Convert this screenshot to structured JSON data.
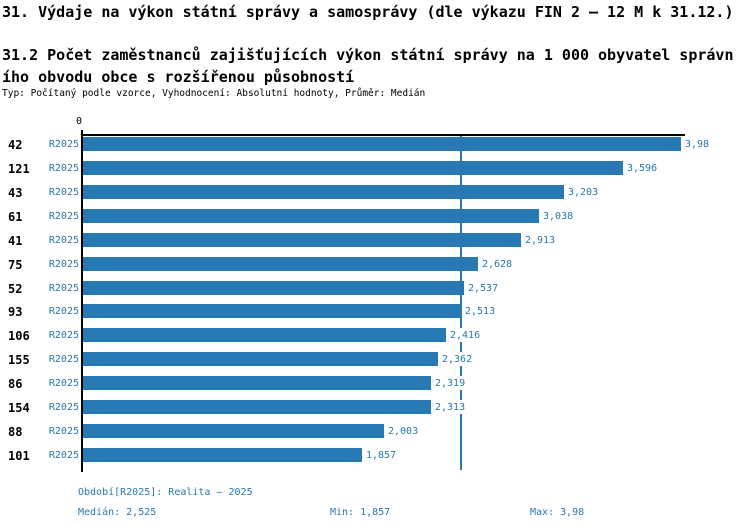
{
  "header": {
    "title": "31. Výdaje na výkon státní správy a samosprávy (dle výkazu FIN 2 – 12 M k 31.12.)",
    "subtitle_line1": "31.2 Počet zaměstnanců zajišťujících výkon státní správy na 1 000 obyvatel správn",
    "subtitle_line2": "ího obvodu obce s rozšířenou působností",
    "meta": "Typ: Počítaný podle vzorce, Vyhodnocení: Absolutní hodnoty, Průměr: Medián"
  },
  "chart_data": {
    "type": "bar",
    "orientation": "horizontal",
    "title": "31.2 Počet zaměstnanců zajišťujících výkon státní správy na 1 000 obyvatel správního obvodu obce s rozšířenou působností",
    "categories": [
      "42",
      "121",
      "43",
      "61",
      "41",
      "75",
      "52",
      "93",
      "106",
      "155",
      "86",
      "154",
      "88",
      "101"
    ],
    "period_label": "R2025",
    "series": [
      {
        "name": "R2025",
        "values": [
          3.98,
          3.596,
          3.203,
          3.038,
          2.913,
          2.628,
          2.537,
          2.513,
          2.416,
          2.362,
          2.319,
          2.313,
          2.003,
          1.857
        ],
        "value_labels": [
          "3,98",
          "3,596",
          "3,203",
          "3,038",
          "2,913",
          "2,628",
          "2,537",
          "2,513",
          "2,416",
          "2,362",
          "2,319",
          "2,313",
          "2,003",
          "1,857"
        ]
      }
    ],
    "xlim": [
      0,
      3.98
    ],
    "origin_tick": "0",
    "median": 2.525,
    "grid": false,
    "legend_position": "none",
    "bar_color": "#2878b4",
    "median_line_color": "#2878b4",
    "axis_color": "#000000"
  },
  "footer": {
    "period_line": "Období[R2025]: Realita – 2025",
    "median_label": "Medián: 2,525",
    "min_label": "Min: 1,857",
    "max_label": "Max: 3,98",
    "text_color": "#2878b4"
  }
}
